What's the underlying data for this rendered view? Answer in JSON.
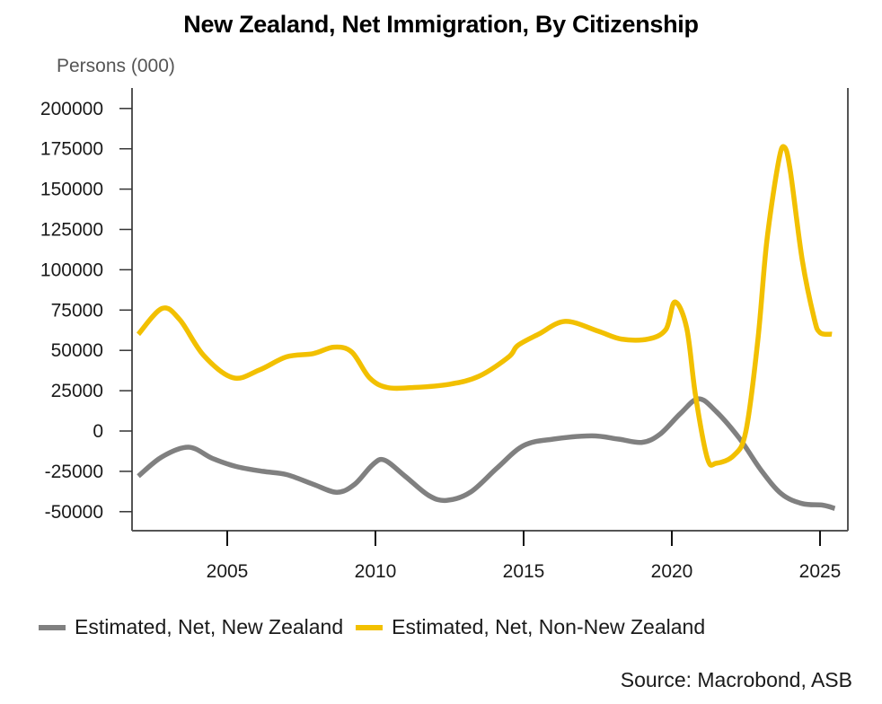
{
  "chart_data": {
    "type": "line",
    "title": "New Zealand, Net Immigration, By Citizenship",
    "ylabel": "Persons (000)",
    "xlabel": "",
    "ylim": [
      -60000,
      210000
    ],
    "xlim": [
      2001.8,
      2026.2
    ],
    "yticks": [
      200000,
      175000,
      150000,
      125000,
      100000,
      75000,
      50000,
      25000,
      0,
      -25000,
      -50000
    ],
    "xticks": [
      2005,
      2010,
      2015,
      2020,
      2025
    ],
    "grid": false,
    "legend_position": "bottom",
    "source": "Source: Macrobond, ASB",
    "series": [
      {
        "name": "Estimated, Net, New Zealand",
        "color": "#808080",
        "x": [
          2002.0,
          2002.8,
          2003.7,
          2004.5,
          2005.3,
          2006.2,
          2007.0,
          2007.9,
          2008.7,
          2009.3,
          2009.9,
          2010.3,
          2011.0,
          2011.8,
          2012.4,
          2013.2,
          2014.1,
          2015.0,
          2016.0,
          2017.3,
          2018.2,
          2019.0,
          2019.6,
          2020.3,
          2020.9,
          2021.5,
          2022.3,
          2023.0,
          2023.7,
          2024.4,
          2025.1,
          2025.5
        ],
        "values": [
          -28000,
          -16000,
          -10000,
          -17000,
          -22000,
          -25000,
          -27000,
          -33000,
          -38000,
          -33000,
          -21000,
          -18000,
          -28000,
          -40000,
          -43000,
          -38000,
          -23000,
          -9000,
          -5000,
          -3000,
          -5000,
          -7000,
          -2000,
          11000,
          20000,
          12000,
          -5000,
          -24000,
          -39000,
          -45000,
          -46000,
          -48000
        ]
      },
      {
        "name": "Estimated, Net, Non-New Zealand",
        "color": "#F2C000",
        "x": [
          2002.0,
          2002.8,
          2003.4,
          2004.2,
          2005.2,
          2006.1,
          2007.0,
          2007.9,
          2008.6,
          2009.2,
          2009.8,
          2010.4,
          2011.3,
          2012.5,
          2013.5,
          2014.5,
          2014.8,
          2015.5,
          2016.4,
          2017.5,
          2018.3,
          2019.2,
          2019.8,
          2020.1,
          2020.5,
          2020.8,
          2021.2,
          2021.5,
          2022.1,
          2022.5,
          2022.9,
          2023.2,
          2023.6,
          2023.8,
          2024.0,
          2024.4,
          2024.8,
          2025.0,
          2025.4
        ],
        "values": [
          60000,
          76000,
          69000,
          47000,
          33000,
          38000,
          46000,
          48000,
          52000,
          49000,
          33000,
          27000,
          27000,
          29000,
          34000,
          46000,
          53000,
          60000,
          68000,
          62000,
          57000,
          57000,
          63000,
          80000,
          64000,
          22000,
          -17000,
          -20000,
          -15000,
          0,
          56000,
          117000,
          167000,
          176000,
          161000,
          106000,
          70000,
          61000,
          60000
        ]
      }
    ]
  },
  "ytick_labels": [
    "200000",
    "175000",
    "150000",
    "125000",
    "100000",
    "75000",
    "50000",
    "25000",
    "0",
    "-25000",
    "-50000"
  ],
  "xtick_labels": [
    "2005",
    "2010",
    "2015",
    "2020",
    "2025"
  ]
}
